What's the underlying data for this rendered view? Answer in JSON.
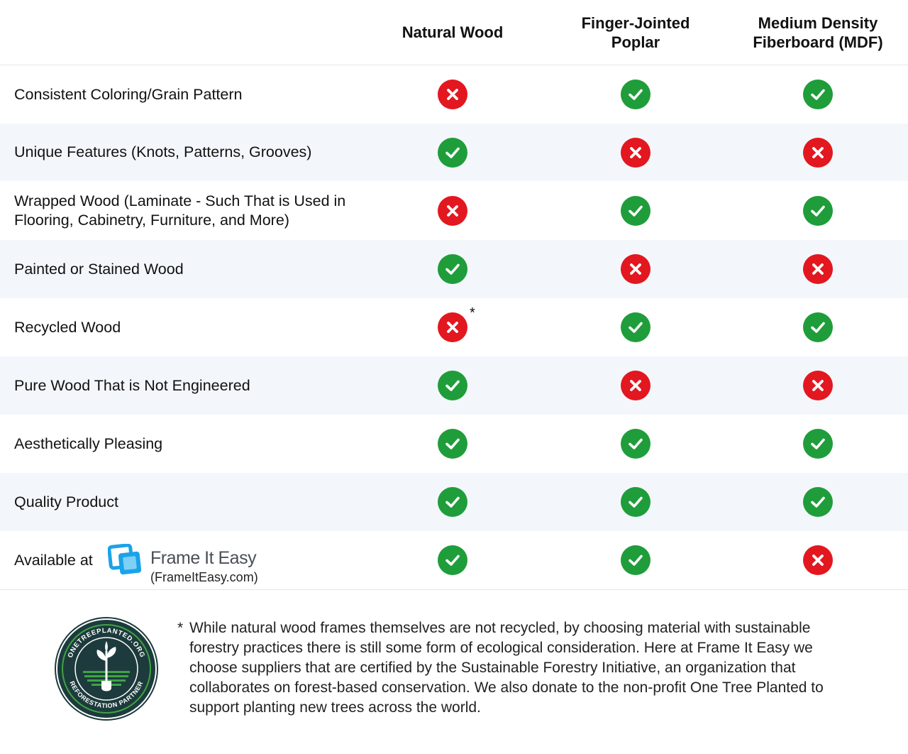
{
  "columns": [
    {
      "label": "Natural Wood"
    },
    {
      "label": "Finger-Jointed\nPoplar"
    },
    {
      "label": "Medium Density\nFiberboard (MDF)"
    }
  ],
  "rows": [
    {
      "label": "Consistent Coloring/Grain Pattern",
      "values": [
        false,
        true,
        true
      ]
    },
    {
      "label": "Unique Features (Knots, Patterns, Grooves)",
      "values": [
        true,
        false,
        false
      ]
    },
    {
      "label": "Wrapped Wood (Laminate - Such That is Used in\nFlooring, Cabinetry, Furniture, and More)",
      "values": [
        false,
        true,
        true
      ]
    },
    {
      "label": "Painted or Stained Wood",
      "values": [
        true,
        false,
        false
      ]
    },
    {
      "label": "Recycled Wood",
      "values": [
        false,
        true,
        true
      ],
      "note_mark": "*"
    },
    {
      "label": "Pure Wood That is Not Engineered",
      "values": [
        true,
        false,
        false
      ]
    },
    {
      "label": "Aesthetically Pleasing",
      "values": [
        true,
        true,
        true
      ]
    },
    {
      "label": "Quality Product",
      "values": [
        true,
        true,
        true
      ]
    },
    {
      "label": "Available at",
      "values": [
        true,
        true,
        false
      ]
    }
  ],
  "brand": {
    "name": "Frame It Easy",
    "url_text": "(FrameItEasy.com)"
  },
  "badge": {
    "top_text": "ONETREEPLANTED.ORG",
    "bottom_text": "REFORESTATION PARTNER"
  },
  "footnote": {
    "mark": "*",
    "text": "While natural wood frames themselves are not recycled, by choosing material with sustainable forestry practices there is still some form of ecological consideration. Here at Frame It Easy we choose suppliers that are certified by the Sustainable Forestry Initiative, an organization that collaborates on forest-based conservation. We also donate to the non-profit One Tree Planted to support planting new trees across the world."
  },
  "colors": {
    "yes": "#1f9d3a",
    "no": "#e3171f",
    "alt_row": "#f3f7fc",
    "brand_blue": "#1aa3e8"
  },
  "icons": {
    "yes": "check-icon",
    "no": "x-icon"
  }
}
